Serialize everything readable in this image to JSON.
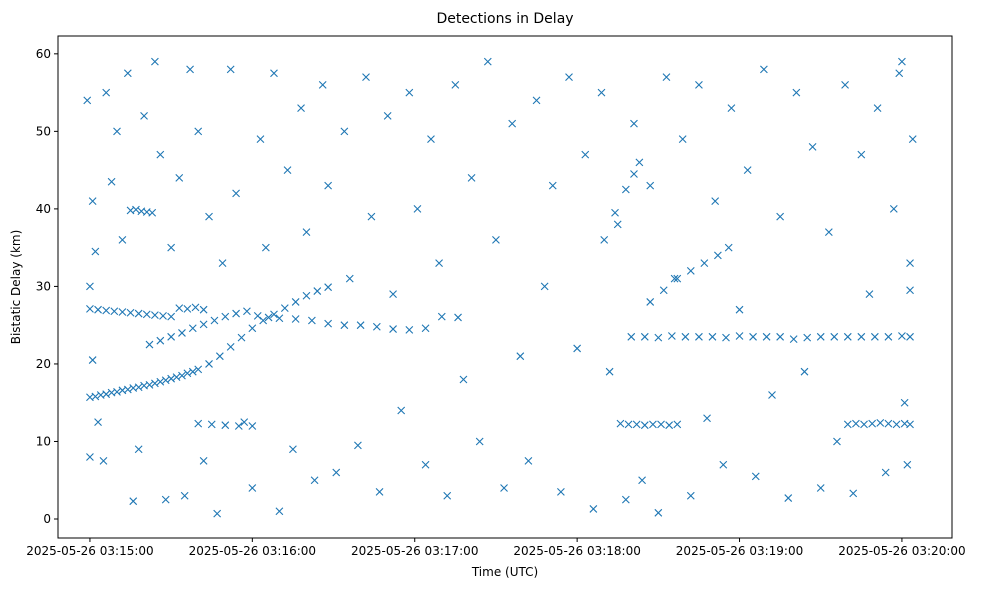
{
  "chart_data": {
    "type": "scatter",
    "title": "Detections in Delay",
    "xlabel": "Time (UTC)",
    "ylabel": "Bistatic Delay (km)",
    "x_units": "seconds after 2025-05-26 03:15:00",
    "xlim": [
      -11.8,
      318.5
    ],
    "ylim": [
      -2.45,
      62.3
    ],
    "x_ticks": [
      0,
      60,
      120,
      180,
      240,
      300
    ],
    "x_tick_labels": [
      "2025-05-26 03:15:00",
      "2025-05-26 03:16:00",
      "2025-05-26 03:17:00",
      "2025-05-26 03:18:00",
      "2025-05-26 03:19:00",
      "2025-05-26 03:20:00"
    ],
    "y_ticks": [
      0,
      10,
      20,
      30,
      40,
      50,
      60
    ],
    "y_tick_labels": [
      "0",
      "10",
      "20",
      "30",
      "40",
      "50",
      "60"
    ],
    "marker": "x",
    "color": "#1f77b4",
    "points": [
      [
        0,
        15.7
      ],
      [
        2,
        15.8
      ],
      [
        4,
        16.0
      ],
      [
        6,
        16.1
      ],
      [
        8,
        16.3
      ],
      [
        10,
        16.4
      ],
      [
        12,
        16.6
      ],
      [
        14,
        16.7
      ],
      [
        16,
        16.9
      ],
      [
        18,
        17.0
      ],
      [
        20,
        17.2
      ],
      [
        22,
        17.3
      ],
      [
        24,
        17.5
      ],
      [
        26,
        17.7
      ],
      [
        28,
        17.9
      ],
      [
        30,
        18.1
      ],
      [
        32,
        18.3
      ],
      [
        34,
        18.5
      ],
      [
        36,
        18.8
      ],
      [
        38,
        19.0
      ],
      [
        40,
        19.3
      ],
      [
        44,
        20.0
      ],
      [
        48,
        21.0
      ],
      [
        52,
        22.2
      ],
      [
        56,
        23.4
      ],
      [
        60,
        24.6
      ],
      [
        64,
        25.6
      ],
      [
        68,
        26.4
      ],
      [
        72,
        27.2
      ],
      [
        76,
        28.0
      ],
      [
        80,
        28.8
      ],
      [
        84,
        29.4
      ],
      [
        88,
        29.9
      ],
      [
        0,
        27.1
      ],
      [
        3,
        27.0
      ],
      [
        6,
        26.9
      ],
      [
        9,
        26.8
      ],
      [
        12,
        26.7
      ],
      [
        15,
        26.6
      ],
      [
        18,
        26.5
      ],
      [
        21,
        26.4
      ],
      [
        24,
        26.3
      ],
      [
        27,
        26.2
      ],
      [
        30,
        26.1
      ],
      [
        33,
        27.2
      ],
      [
        36,
        27.1
      ],
      [
        39,
        27.3
      ],
      [
        42,
        27.0
      ],
      [
        22,
        22.5
      ],
      [
        26,
        23.0
      ],
      [
        30,
        23.5
      ],
      [
        34,
        24.0
      ],
      [
        38,
        24.6
      ],
      [
        42,
        25.1
      ],
      [
        46,
        25.6
      ],
      [
        50,
        26.1
      ],
      [
        54,
        26.5
      ],
      [
        58,
        26.8
      ],
      [
        62,
        26.2
      ],
      [
        66,
        26.0
      ],
      [
        70,
        25.9
      ],
      [
        76,
        25.8
      ],
      [
        82,
        25.6
      ],
      [
        88,
        25.2
      ],
      [
        94,
        25.0
      ],
      [
        100,
        25.0
      ],
      [
        106,
        24.8
      ],
      [
        112,
        24.5
      ],
      [
        118,
        24.4
      ],
      [
        124,
        24.6
      ],
      [
        130,
        26.1
      ],
      [
        136,
        26.0
      ],
      [
        200,
        23.5
      ],
      [
        205,
        23.5
      ],
      [
        210,
        23.4
      ],
      [
        215,
        23.6
      ],
      [
        220,
        23.5
      ],
      [
        225,
        23.5
      ],
      [
        230,
        23.5
      ],
      [
        235,
        23.4
      ],
      [
        240,
        23.6
      ],
      [
        245,
        23.5
      ],
      [
        250,
        23.5
      ],
      [
        255,
        23.5
      ],
      [
        260,
        23.2
      ],
      [
        265,
        23.4
      ],
      [
        270,
        23.5
      ],
      [
        275,
        23.5
      ],
      [
        280,
        23.5
      ],
      [
        285,
        23.5
      ],
      [
        290,
        23.5
      ],
      [
        295,
        23.5
      ],
      [
        300,
        23.6
      ],
      [
        303,
        23.5
      ],
      [
        40,
        12.3
      ],
      [
        45,
        12.2
      ],
      [
        50,
        12.1
      ],
      [
        55,
        12.0
      ],
      [
        60,
        12.0
      ],
      [
        196,
        12.3
      ],
      [
        199,
        12.2
      ],
      [
        202,
        12.2
      ],
      [
        205,
        12.1
      ],
      [
        208,
        12.2
      ],
      [
        211,
        12.2
      ],
      [
        214,
        12.1
      ],
      [
        217,
        12.2
      ],
      [
        280,
        12.2
      ],
      [
        283,
        12.3
      ],
      [
        286,
        12.2
      ],
      [
        289,
        12.3
      ],
      [
        292,
        12.4
      ],
      [
        295,
        12.3
      ],
      [
        298,
        12.2
      ],
      [
        301,
        12.3
      ],
      [
        303,
        12.2
      ],
      [
        207,
        28.0
      ],
      [
        212,
        29.5
      ],
      [
        217,
        31.0
      ],
      [
        222,
        32.0
      ],
      [
        227,
        33.0
      ],
      [
        232,
        34.0
      ],
      [
        236,
        35.0
      ],
      [
        190,
        36.0
      ],
      [
        194,
        39.5
      ],
      [
        198,
        42.5
      ],
      [
        201,
        44.5
      ],
      [
        203,
        46.0
      ],
      [
        15,
        39.8
      ],
      [
        17,
        39.9
      ],
      [
        19,
        39.7
      ],
      [
        21,
        39.6
      ],
      [
        23,
        39.5
      ],
      [
        -1,
        54
      ],
      [
        1,
        41
      ],
      [
        2,
        34.5
      ],
      [
        0,
        30
      ],
      [
        1,
        20.5
      ],
      [
        0,
        8
      ],
      [
        3,
        12.5
      ],
      [
        5,
        7.5
      ],
      [
        6,
        55
      ],
      [
        8,
        43.5
      ],
      [
        10,
        50
      ],
      [
        12,
        36
      ],
      [
        14,
        57.5
      ],
      [
        16,
        2.3
      ],
      [
        18,
        9
      ],
      [
        20,
        52
      ],
      [
        24,
        59
      ],
      [
        26,
        47
      ],
      [
        28,
        2.5
      ],
      [
        30,
        35
      ],
      [
        33,
        44
      ],
      [
        35,
        3
      ],
      [
        37,
        58
      ],
      [
        40,
        50
      ],
      [
        42,
        7.5
      ],
      [
        44,
        39
      ],
      [
        47,
        0.7
      ],
      [
        49,
        33
      ],
      [
        52,
        58
      ],
      [
        54,
        42
      ],
      [
        57,
        12.5
      ],
      [
        60,
        4
      ],
      [
        63,
        49
      ],
      [
        65,
        35
      ],
      [
        68,
        57.5
      ],
      [
        70,
        1
      ],
      [
        73,
        45
      ],
      [
        75,
        9
      ],
      [
        78,
        53
      ],
      [
        80,
        37
      ],
      [
        83,
        5
      ],
      [
        86,
        56
      ],
      [
        88,
        43
      ],
      [
        91,
        6
      ],
      [
        94,
        50
      ],
      [
        96,
        31
      ],
      [
        99,
        9.5
      ],
      [
        102,
        57
      ],
      [
        104,
        39
      ],
      [
        107,
        3.5
      ],
      [
        110,
        52
      ],
      [
        112,
        29
      ],
      [
        115,
        14
      ],
      [
        118,
        55
      ],
      [
        121,
        40
      ],
      [
        124,
        7
      ],
      [
        126,
        49
      ],
      [
        129,
        33
      ],
      [
        132,
        3
      ],
      [
        135,
        56
      ],
      [
        138,
        18
      ],
      [
        141,
        44
      ],
      [
        144,
        10
      ],
      [
        147,
        59
      ],
      [
        150,
        36
      ],
      [
        153,
        4
      ],
      [
        156,
        51
      ],
      [
        159,
        21
      ],
      [
        162,
        7.5
      ],
      [
        165,
        54
      ],
      [
        168,
        30
      ],
      [
        171,
        43
      ],
      [
        174,
        3.5
      ],
      [
        177,
        57
      ],
      [
        180,
        22
      ],
      [
        183,
        47
      ],
      [
        186,
        1.3
      ],
      [
        189,
        55
      ],
      [
        192,
        19
      ],
      [
        195,
        38
      ],
      [
        198,
        2.5
      ],
      [
        201,
        51
      ],
      [
        204,
        5
      ],
      [
        207,
        43
      ],
      [
        210,
        0.8
      ],
      [
        213,
        57
      ],
      [
        216,
        31
      ],
      [
        219,
        49
      ],
      [
        222,
        3
      ],
      [
        225,
        56
      ],
      [
        228,
        13
      ],
      [
        231,
        41
      ],
      [
        234,
        7
      ],
      [
        237,
        53
      ],
      [
        240,
        27
      ],
      [
        243,
        45
      ],
      [
        246,
        5.5
      ],
      [
        249,
        58
      ],
      [
        252,
        16
      ],
      [
        255,
        39
      ],
      [
        258,
        2.7
      ],
      [
        261,
        55
      ],
      [
        264,
        19
      ],
      [
        267,
        48
      ],
      [
        270,
        4
      ],
      [
        273,
        37
      ],
      [
        276,
        10
      ],
      [
        279,
        56
      ],
      [
        282,
        3.3
      ],
      [
        285,
        47
      ],
      [
        288,
        29
      ],
      [
        291,
        53
      ],
      [
        294,
        6
      ],
      [
        297,
        40
      ],
      [
        300,
        59
      ],
      [
        302,
        7
      ],
      [
        303,
        33
      ],
      [
        304,
        49
      ],
      [
        303,
        29.5
      ],
      [
        301,
        15
      ],
      [
        299,
        57.5
      ]
    ]
  }
}
